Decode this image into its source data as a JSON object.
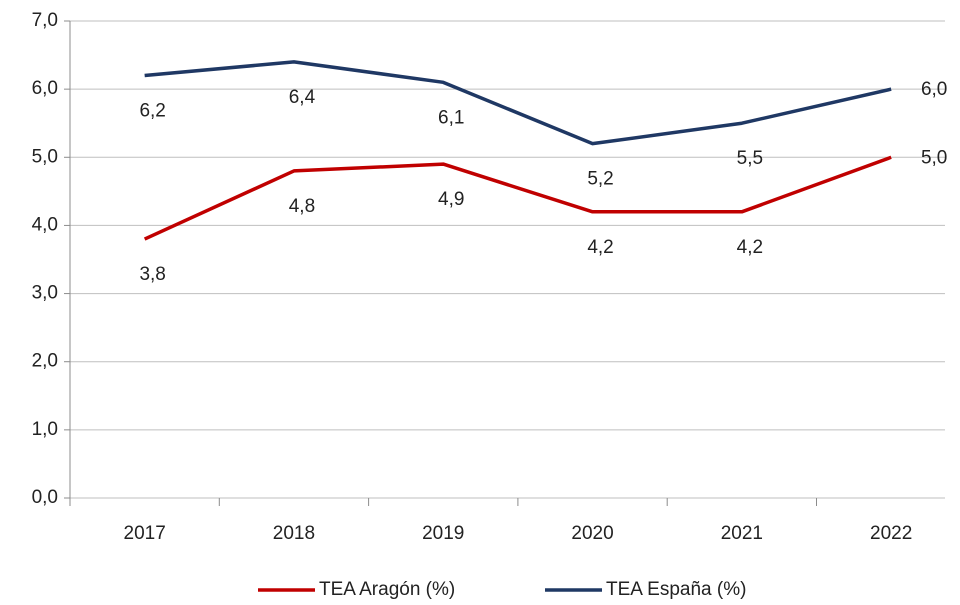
{
  "chart_data": {
    "type": "line",
    "categories": [
      "2017",
      "2018",
      "2019",
      "2020",
      "2021",
      "2022"
    ],
    "series": [
      {
        "name": "TEA Aragón (%)",
        "color": "#c00000",
        "values": [
          3.8,
          4.8,
          4.9,
          4.2,
          4.2,
          5.0
        ],
        "value_labels": [
          "3,8",
          "4,8",
          "4,9",
          "4,2",
          "4,2",
          "5,0"
        ]
      },
      {
        "name": "TEA España (%)",
        "color": "#1f3864",
        "values": [
          6.2,
          6.4,
          6.1,
          5.2,
          5.5,
          6.0
        ],
        "value_labels": [
          "6,2",
          "6,4",
          "6,1",
          "5,2",
          "5,5",
          "6,0"
        ]
      }
    ],
    "ylim": [
      0,
      7
    ],
    "yticks": [
      {
        "value": 0,
        "label": "0,0"
      },
      {
        "value": 1,
        "label": "1,0"
      },
      {
        "value": 2,
        "label": "2,0"
      },
      {
        "value": 3,
        "label": "3,0"
      },
      {
        "value": 4,
        "label": "4,0"
      },
      {
        "value": 5,
        "label": "5,0"
      },
      {
        "value": 6,
        "label": "6,0"
      },
      {
        "value": 7,
        "label": "7,0"
      }
    ],
    "grid": true,
    "legend": "bottom"
  }
}
